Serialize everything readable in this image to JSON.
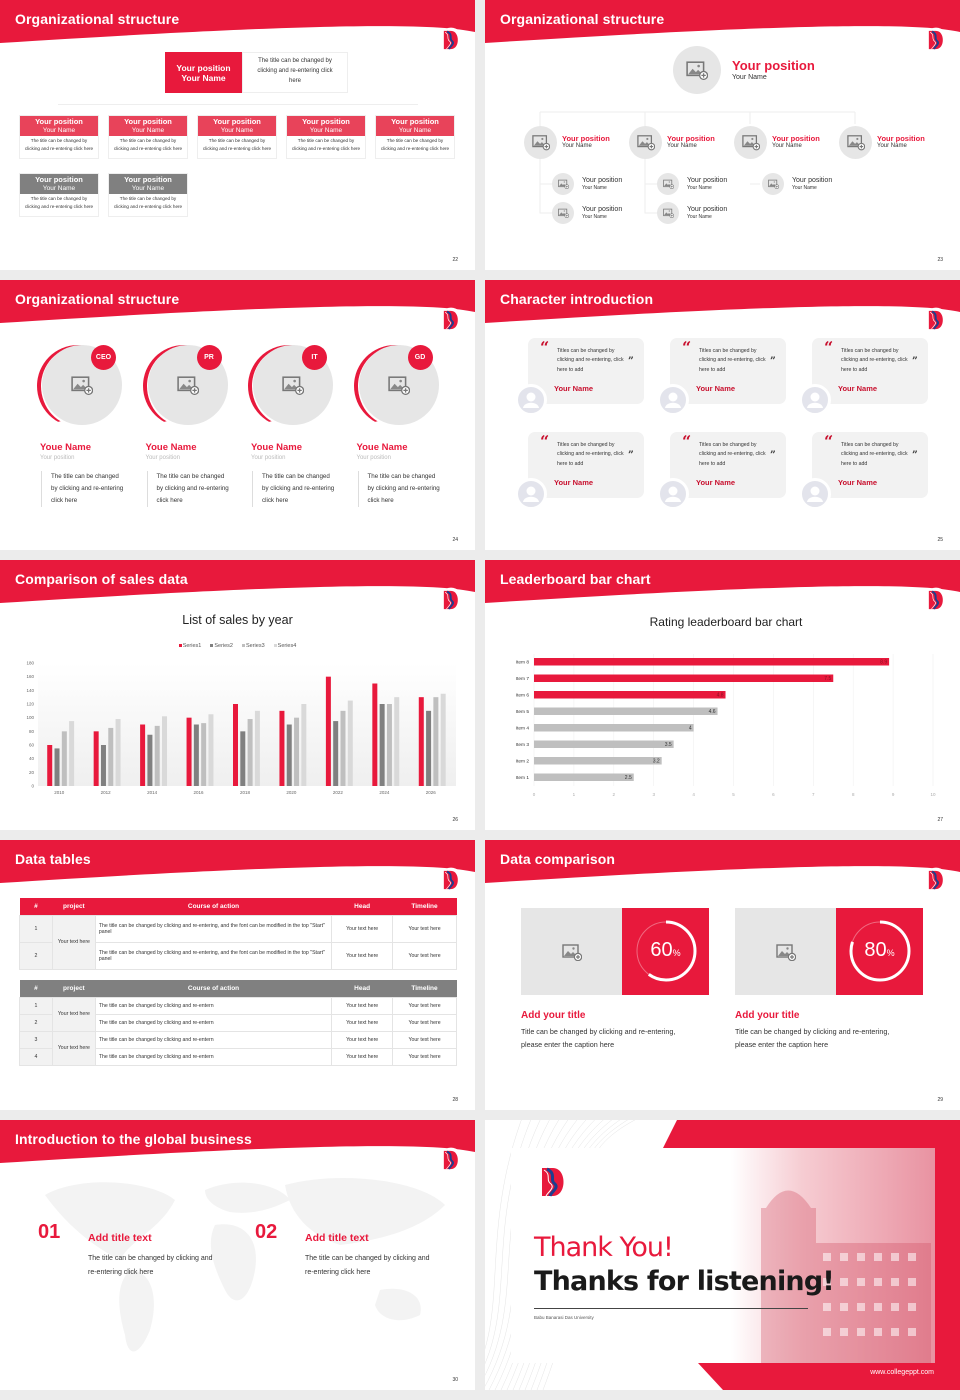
{
  "brand": {
    "primary": "#e8193c",
    "card_red": "#e8435a",
    "gray": "#808080",
    "light_gray": "#e6e6e6"
  },
  "slides": [
    {
      "title": "Organizational structure",
      "page": "22",
      "top": {
        "position": "Your position",
        "name": "Your Name",
        "desc": "The title can be changed by clicking and re-entering click here"
      },
      "cards": [
        {
          "position": "Your position",
          "name": "Your Name",
          "desc": "The title can be changed by clicking and re-entering click here",
          "color": "red"
        },
        {
          "position": "Your position",
          "name": "Your Name",
          "desc": "The title can be changed by clicking and re-entering click here",
          "color": "red"
        },
        {
          "position": "Your position",
          "name": "Your Name",
          "desc": "The title can be changed by clicking and re-entering click here",
          "color": "red"
        },
        {
          "position": "Your position",
          "name": "Your Name",
          "desc": "The title can be changed by clicking and re-entering click here",
          "color": "red"
        },
        {
          "position": "Your position",
          "name": "Your Name",
          "desc": "The title can be changed by clicking and re-entering click here",
          "color": "red"
        },
        {
          "position": "Your position",
          "name": "Your Name",
          "desc": "The title can be changed by clicking and re-entering click here",
          "color": "gray"
        },
        {
          "position": "Your position",
          "name": "Your Name",
          "desc": "The title can be changed by clicking and re-entering click here",
          "color": "gray"
        }
      ]
    },
    {
      "title": "Organizational structure",
      "page": "23",
      "top": {
        "position": "Your position",
        "name": "Your Name"
      },
      "mid": [
        {
          "position": "Your position",
          "name": "Your Name"
        },
        {
          "position": "Your position",
          "name": "Your Name"
        },
        {
          "position": "Your position",
          "name": "Your Name"
        },
        {
          "position": "Your position",
          "name": "Your Name"
        }
      ],
      "sub": [
        {
          "position": "Your position",
          "name": "Your Name"
        },
        {
          "position": "Your position",
          "name": "Your Name"
        },
        {
          "position": "Your position",
          "name": "Your Name"
        },
        {
          "position": "Your position",
          "name": "Your Name"
        },
        {
          "position": "Your position",
          "name": "Your Name"
        }
      ]
    },
    {
      "title": "Organizational structure",
      "page": "24",
      "people": [
        {
          "badge": "CEO",
          "name": "Youe Name",
          "position": "Your position",
          "desc": "The title can be changed by clicking and re-entering click here"
        },
        {
          "badge": "PR",
          "name": "Youe Name",
          "position": "Your position",
          "desc": "The title can be changed by clicking and re-entering click here"
        },
        {
          "badge": "IT",
          "name": "Youe Name",
          "position": "Your position",
          "desc": "The title can be changed by clicking and re-entering click here"
        },
        {
          "badge": "GD",
          "name": "Youe Name",
          "position": "Your position",
          "desc": "The title can be changed by clicking and re-entering click here"
        }
      ]
    },
    {
      "title": "Character introduction",
      "page": "25",
      "quotes": [
        {
          "text": "Titles can be changed by clicking and re-entering, click here to add",
          "name": "Your Name"
        },
        {
          "text": "Titles can be changed by clicking and re-entering, click here to add",
          "name": "Your Name"
        },
        {
          "text": "Titles can be changed by clicking and re-entering, click here to add",
          "name": "Your Name"
        },
        {
          "text": "Titles can be changed by clicking and re-entering, click here to add",
          "name": "Your Name"
        },
        {
          "text": "Titles can be changed by clicking and re-entering, click here to add",
          "name": "Your Name"
        },
        {
          "text": "Titles can be changed by clicking and re-entering, click here to add",
          "name": "Your Name"
        }
      ]
    },
    {
      "title": "Comparison of sales data",
      "page": "26"
    },
    {
      "title": "Leaderboard bar chart",
      "page": "27"
    },
    {
      "title": "Data tables",
      "page": "28",
      "headers": [
        "#",
        "project",
        "Course of action",
        "Head",
        "Timeline"
      ],
      "table1": {
        "projects": [
          "Your text here"
        ],
        "rows": [
          {
            "num": "1",
            "course": "The title can be changed by clicking and re-entering, and the font can be modified in the top \"Start\" panel",
            "head": "Your text here",
            "timeline": "Your text here"
          },
          {
            "num": "2",
            "course": "The title can be changed by clicking and re-entering, and the font can be modified in the top \"Start\" panel",
            "head": "Your text here",
            "timeline": "Your text here"
          }
        ]
      },
      "table2": {
        "projects": [
          "Your text here",
          "Your text here"
        ],
        "rows": [
          {
            "num": "1",
            "course": "The title can be changed by clicking and re-entern",
            "head": "Your text here",
            "timeline": "Your text here"
          },
          {
            "num": "2",
            "course": "The title can be changed by clicking and re-entern",
            "head": "Your text here",
            "timeline": "Your text here"
          },
          {
            "num": "3",
            "course": "The title can be changed by clicking and re-entern",
            "head": "Your text here",
            "timeline": "Your text here"
          },
          {
            "num": "4",
            "course": "The title can be changed by clicking and re-entern",
            "head": "Your text here",
            "timeline": "Your text here"
          }
        ]
      }
    },
    {
      "title": "Data comparison",
      "page": "29",
      "panels": [
        {
          "value": "60",
          "unit": "%",
          "percent": 60,
          "title": "Add your title",
          "desc": "Title can be changed by clicking and re-entering, please enter the caption here"
        },
        {
          "value": "80",
          "unit": "%",
          "percent": 80,
          "title": "Add your title",
          "desc": "Title can be changed by clicking and re-entering, please enter the caption here"
        }
      ]
    },
    {
      "title": "Introduction to the global business",
      "page": "30",
      "items": [
        {
          "num": "01",
          "title": "Add title text",
          "desc": "The title can be changed by clicking and re-entering click here"
        },
        {
          "num": "02",
          "title": "Add title text",
          "desc": "The title can be changed by clicking and re-entering click here"
        }
      ]
    },
    {
      "thank": "Thank You!",
      "thanks": "Thanks for listening!",
      "university": "Babu Banarasi Das University",
      "website": "www.collegeppt.com"
    }
  ],
  "chart_data": [
    {
      "type": "bar",
      "title": "List of sales by year",
      "categories": [
        "2010",
        "2012",
        "2014",
        "2016",
        "2018",
        "2020",
        "2022",
        "2024",
        "2026"
      ],
      "series": [
        {
          "name": "Series1",
          "color": "#e8193c",
          "values": [
            60,
            80,
            90,
            100,
            120,
            110,
            160,
            150,
            130
          ]
        },
        {
          "name": "Series2",
          "color": "#808080",
          "values": [
            55,
            60,
            75,
            90,
            80,
            90,
            95,
            120,
            110
          ]
        },
        {
          "name": "Series3",
          "color": "#bfbfbf",
          "values": [
            80,
            85,
            88,
            92,
            98,
            100,
            110,
            120,
            130
          ]
        },
        {
          "name": "Series4",
          "color": "#d9d9d9",
          "values": [
            95,
            98,
            102,
            105,
            110,
            120,
            125,
            130,
            135
          ]
        }
      ],
      "yticks": [
        "0",
        "20",
        "40",
        "60",
        "80",
        "100",
        "120",
        "140",
        "160",
        "180"
      ],
      "ylim": [
        0,
        180
      ],
      "legend": "top",
      "grid": false
    },
    {
      "type": "bar",
      "orientation": "horizontal",
      "title": "Rating leaderboard bar chart",
      "categories": [
        "Item 8",
        "Item 7",
        "Item 6",
        "Item 5",
        "Item 4",
        "Item 3",
        "Item 2",
        "Item 1"
      ],
      "values": [
        8.9,
        7.5,
        4.8,
        4.6,
        4,
        3.5,
        3.2,
        2.5
      ],
      "labels": [
        "8.9",
        "7.5",
        "4.8",
        "4.6",
        "4",
        "3.5",
        "3.2",
        "2.5"
      ],
      "highlight_colors": {
        "top3": "#e8193c",
        "rest": "#bfbfbf"
      },
      "xticks": [
        "0",
        "1",
        "2",
        "3",
        "4",
        "5",
        "6",
        "7",
        "8",
        "9",
        "10"
      ],
      "xlim": [
        0,
        10
      ],
      "grid": true
    }
  ]
}
